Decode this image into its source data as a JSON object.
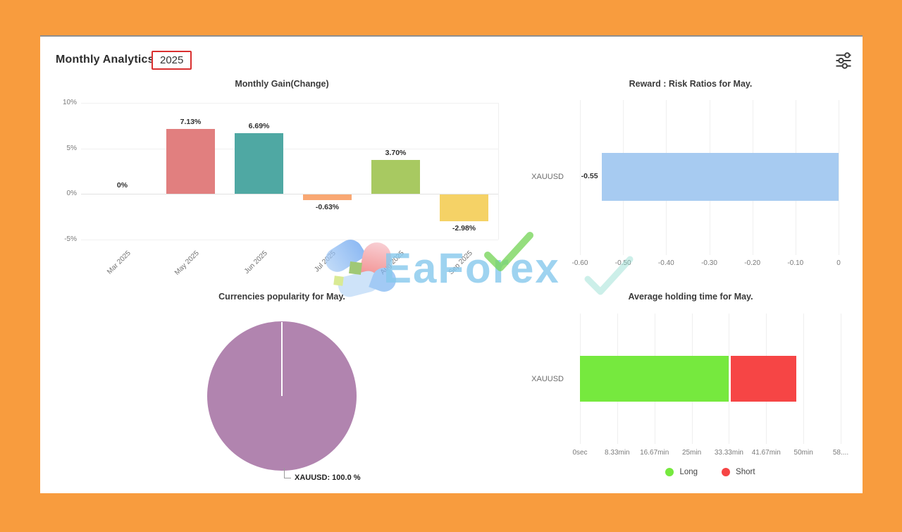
{
  "page": {
    "background": "#F89C3E",
    "panel_background": "#FFFFFF"
  },
  "header": {
    "title": "Monthly Analytics",
    "year": "2025",
    "year_box_border": "#D93030"
  },
  "controls": {
    "filter_icon": "sliders-icon"
  },
  "watermark": {
    "part1": "EaF",
    "part2": "o",
    "part3": "rex",
    "color": "#86C8EC",
    "check_color": "#7BD75E"
  },
  "chart_data": [
    {
      "id": "monthly_gain",
      "type": "bar",
      "title": "Monthly Gain(Change)",
      "categories": [
        "Mar 2025",
        "May 2025",
        "Jun 2025",
        "Jul 2025",
        "Aug 2025",
        "Sep 2025"
      ],
      "values": [
        0,
        7.13,
        6.69,
        -0.63,
        3.7,
        -2.98
      ],
      "value_labels": [
        "0%",
        "7.13%",
        "6.69%",
        "-0.63%",
        "3.70%",
        "-2.98%"
      ],
      "bar_colors": [
        "#E17F7F",
        "#E17F7F",
        "#4FA8A3",
        "#F9A873",
        "#A8C961",
        "#F5D266"
      ],
      "ytick_values": [
        10,
        5,
        0,
        -5
      ],
      "ytick_labels": [
        "10%",
        "5%",
        "0%",
        "-5%"
      ],
      "ylim": [
        -5,
        10
      ],
      "grid": true,
      "legend": "none"
    },
    {
      "id": "reward_risk",
      "type": "bar-horizontal",
      "title": "Reward : Risk Ratios for May.",
      "categories": [
        "XAUUSD"
      ],
      "values": [
        -0.55
      ],
      "value_labels": [
        "-0.55"
      ],
      "bar_color": "#A7CBF1",
      "xtick_values": [
        -0.6,
        -0.5,
        -0.4,
        -0.3,
        -0.2,
        -0.1,
        0
      ],
      "xtick_labels": [
        "-0.60",
        "-0.50",
        "-0.40",
        "-0.30",
        "-0.20",
        "-0.10",
        "0"
      ],
      "xlim": [
        -0.6,
        0
      ],
      "grid": true,
      "legend": "none"
    },
    {
      "id": "currencies_popularity",
      "type": "pie",
      "title": "Currencies popularity for May.",
      "slices": [
        {
          "label": "XAUUSD",
          "value": 100.0,
          "color": "#B184AF",
          "data_label": "XAUUSD: 100.0 %"
        }
      ]
    },
    {
      "id": "avg_holding_time",
      "type": "stacked-bar-horizontal",
      "title": "Average holding time for May.",
      "categories": [
        "XAUUSD"
      ],
      "series": [
        {
          "name": "Long",
          "color": "#76E93E",
          "value_minutes": 33.33
        },
        {
          "name": "Short",
          "color": "#F64545",
          "value_minutes": 14.6
        }
      ],
      "xtick_values": [
        0,
        8.33,
        16.67,
        25,
        33.33,
        41.67,
        50,
        58.33
      ],
      "xtick_labels": [
        "0sec",
        "8.33min",
        "16.67min",
        "25min",
        "33.33min",
        "41.67min",
        "50min",
        "58...."
      ],
      "xlim": [
        0,
        58.33
      ],
      "legend": [
        {
          "label": "Long",
          "color": "#76E93E"
        },
        {
          "label": "Short",
          "color": "#F64545"
        }
      ],
      "legend_position": "bottom"
    }
  ]
}
